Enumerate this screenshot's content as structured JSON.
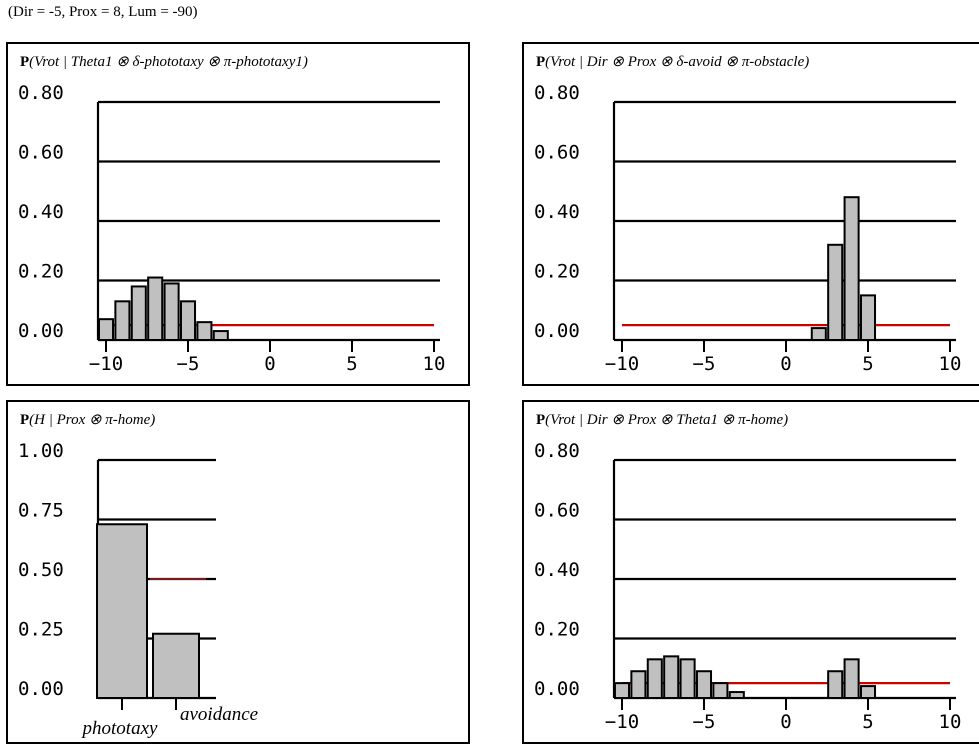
{
  "condition": "(Dir = -5, Prox = 8, Lum = -90)",
  "colors": {
    "bar_fill": "#c0c0c0",
    "bar_stroke": "#000000",
    "ref_line": "#cc0000"
  },
  "chart_data": [
    {
      "type": "bar",
      "title_prefix": "P",
      "title_body": "(Vrot | Theta1 ⊗ δ-phototaxy ⊗ π-phototaxy1)",
      "y_ticks": [
        "0.00",
        "0.20",
        "0.40",
        "0.60",
        "0.80"
      ],
      "x_ticks": [
        "−10",
        "−5",
        "0",
        "5",
        "10"
      ],
      "ylim": [
        0,
        0.8
      ],
      "xlim": [
        -10,
        10
      ],
      "reference_line": 0.05,
      "x": [
        -10,
        -9,
        -8,
        -7,
        -6,
        -5,
        -4,
        -3
      ],
      "values": [
        0.07,
        0.13,
        0.18,
        0.21,
        0.19,
        0.13,
        0.06,
        0.03
      ]
    },
    {
      "type": "bar",
      "title_prefix": "P",
      "title_body": "(Vrot | Dir ⊗ Prox ⊗ δ-avoid ⊗ π-obstacle)",
      "y_ticks": [
        "0.00",
        "0.20",
        "0.40",
        "0.60",
        "0.80"
      ],
      "x_ticks": [
        "−10",
        "−5",
        "0",
        "5",
        "10"
      ],
      "ylim": [
        0,
        0.8
      ],
      "xlim": [
        -10,
        10
      ],
      "reference_line": 0.05,
      "x": [
        2,
        3,
        4,
        5
      ],
      "values": [
        0.04,
        0.32,
        0.48,
        0.15
      ]
    },
    {
      "type": "bar",
      "title_prefix": "P",
      "title_body": "(H | Prox ⊗ π-home)",
      "y_ticks": [
        "0.00",
        "0.25",
        "0.50",
        "0.75",
        "1.00"
      ],
      "ylim": [
        0,
        1.0
      ],
      "reference_line": 0.5,
      "categories": [
        "phototaxy",
        "avoidance"
      ],
      "values": [
        0.73,
        0.27
      ]
    },
    {
      "type": "bar",
      "title_prefix": "P",
      "title_body": "(Vrot | Dir ⊗ Prox ⊗ Theta1 ⊗ π-home)",
      "y_ticks": [
        "0.00",
        "0.20",
        "0.40",
        "0.60",
        "0.80"
      ],
      "x_ticks": [
        "−10",
        "−5",
        "0",
        "5",
        "10"
      ],
      "ylim": [
        0,
        0.8
      ],
      "xlim": [
        -10,
        10
      ],
      "reference_line": 0.05,
      "x": [
        -10,
        -9,
        -8,
        -7,
        -6,
        -5,
        -4,
        -3,
        3,
        4,
        5
      ],
      "values": [
        0.05,
        0.09,
        0.13,
        0.14,
        0.13,
        0.09,
        0.05,
        0.02,
        0.09,
        0.13,
        0.04
      ]
    }
  ]
}
